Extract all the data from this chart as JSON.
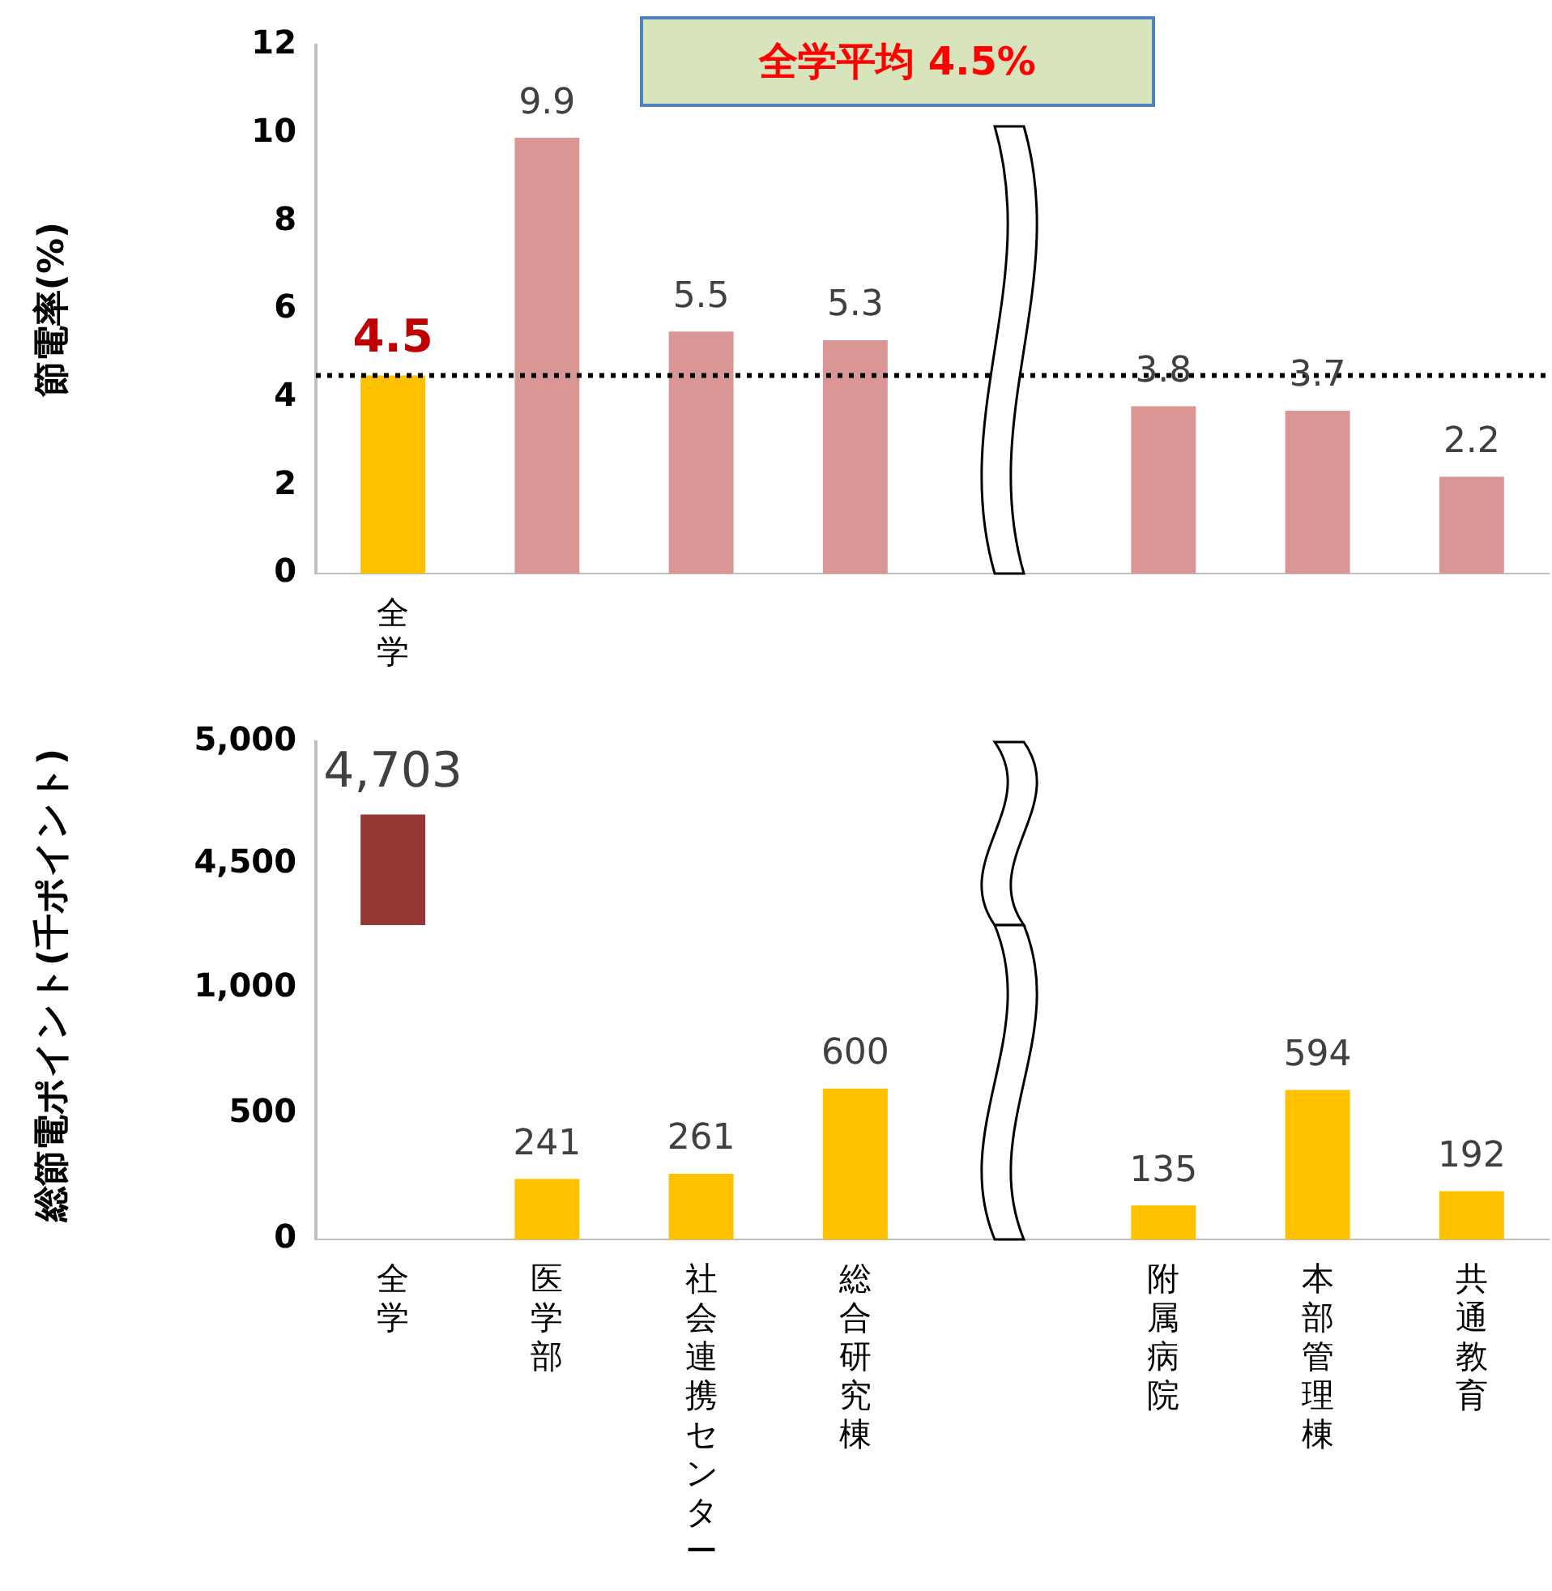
{
  "chart_data": [
    {
      "type": "bar",
      "ylabel": "節電率(%)",
      "categories": [
        "全学",
        null,
        null,
        null,
        null,
        null,
        null,
        null
      ],
      "values": [
        4.5,
        9.9,
        5.5,
        5.3,
        null,
        3.8,
        3.7,
        2.2
      ],
      "colors": [
        "#ffc000",
        "#d99694",
        "#d99694",
        "#d99694",
        null,
        "#d99694",
        "#d99694",
        "#d99694"
      ],
      "ylim": [
        0,
        12
      ],
      "yticks": [
        0,
        2,
        4,
        6,
        8,
        10,
        12
      ],
      "data_labels": true,
      "ref_lines": [
        {
          "axis": "y",
          "value": 4.5,
          "color": "#000000",
          "line_style": "dotted"
        }
      ],
      "annotations": [
        "全学平均 4.5%"
      ],
      "grid": false,
      "legend": false
    },
    {
      "type": "bar",
      "categories": [
        "全学",
        "医学部",
        "社会連携センター",
        "総合研究棟",
        null,
        "附属病院",
        "本部管理棟",
        "共通教育"
      ],
      "values": [
        4703,
        null,
        null,
        null,
        null,
        null,
        null,
        null
      ],
      "colors": [
        "#953735",
        null,
        null,
        null,
        null,
        null,
        null,
        null
      ],
      "value_labels": [
        "4,703",
        null,
        null,
        null,
        null,
        null,
        null,
        null
      ],
      "ylim": [
        4250,
        5000
      ],
      "yticks": [
        {
          "value": 4500,
          "label": "4,500"
        },
        {
          "value": 5000,
          "label": "5,000"
        }
      ],
      "tick_labels": "y",
      "grid": false,
      "legend": false
    },
    {
      "type": "bar",
      "ylabel": "総節電ポイント(千ポイント)",
      "categories": [
        "全学",
        "医学部",
        "社会連携センター",
        "総合研究棟",
        null,
        "附属病院",
        "本部管理棟",
        "共通教育"
      ],
      "values": [
        null,
        241,
        261,
        600,
        null,
        135,
        594,
        192
      ],
      "colors": [
        "#953735",
        "#ffc000",
        "#ffc000",
        "#ffc000",
        null,
        "#ffc000",
        "#ffc000",
        "#ffc000"
      ],
      "value_labels": [
        null,
        "241",
        "261",
        "600",
        null,
        "135",
        "594",
        "192"
      ],
      "ylim": [
        0,
        1250
      ],
      "yticks": [
        0,
        500,
        {
          "value": 1000,
          "label": "1,000"
        }
      ],
      "grid": false,
      "legend": false
    }
  ]
}
